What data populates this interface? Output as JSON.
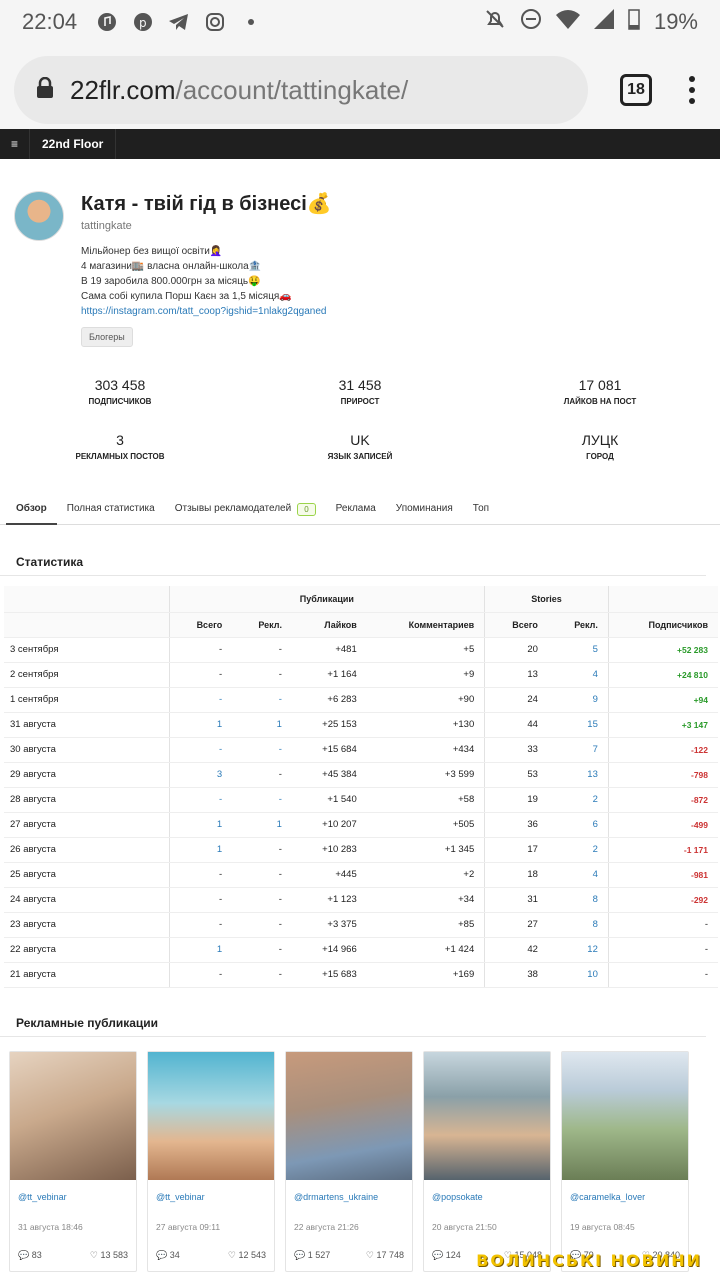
{
  "status_bar": {
    "time": "22:04",
    "battery": "19%"
  },
  "browser": {
    "url_host": "22flr.com",
    "url_path": "/account/tattingkate/",
    "tab_count": "18"
  },
  "site": {
    "menu_glyph": "≡",
    "brand": "22nd Floor"
  },
  "profile": {
    "name": "Катя - твій гід в бізнесі💰",
    "username": "tattingkate",
    "bio": [
      "Мільйонер без вищої освіти🤦‍♀️",
      "4 магазини🏬 власна онлайн-школа🏦",
      "В 19 заробила 800.000грн за місяць🤑",
      "Сама собі купила Порш Каєн за 1,5 місяця🚗"
    ],
    "link": "https://instagram.com/tatt_coop?igshid=1nlakg2qganed",
    "category": "Блогеры"
  },
  "stats": [
    {
      "value": "303 458",
      "label": "ПОДПИСЧИКОВ"
    },
    {
      "value": "31 458",
      "label": "ПРИРОСТ"
    },
    {
      "value": "17 081",
      "label": "ЛАЙКОВ НА ПОСТ"
    },
    {
      "value": "3",
      "label": "РЕКЛАМНЫХ ПОСТОВ"
    },
    {
      "value": "UK",
      "label": "ЯЗЫК ЗАПИСЕЙ"
    },
    {
      "value": "ЛУЦК",
      "label": "ГОРОД"
    }
  ],
  "tabs": [
    "Обзор",
    "Полная статистика",
    "Отзывы рекламодателей",
    "Реклама",
    "Упоминания",
    "Топ"
  ],
  "reviews_badge": "0",
  "statistics": {
    "title": "Статистика",
    "group_headers": [
      "Публикации",
      "Stories"
    ],
    "columns": [
      "Всего",
      "Рекл.",
      "Лайков",
      "Комментариев",
      "Всего",
      "Рекл.",
      "Подписчиков"
    ],
    "rows": [
      [
        "3 сентября",
        "-",
        "-",
        "+481",
        "+5",
        "20",
        "5",
        "+52 283"
      ],
      [
        "2 сентября",
        "-",
        "-",
        "+1 164",
        "+9",
        "13",
        "4",
        "+24 810"
      ],
      [
        "1 сентября",
        "-",
        "-",
        "+6 283",
        "+90",
        "24",
        "9",
        "+94"
      ],
      [
        "31 августа",
        "1",
        "1",
        "+25 153",
        "+130",
        "44",
        "15",
        "+3 147"
      ],
      [
        "30 августа",
        "-",
        "-",
        "+15 684",
        "+434",
        "33",
        "7",
        "-122"
      ],
      [
        "29 августа",
        "3",
        "-",
        "+45 384",
        "+3 599",
        "53",
        "13",
        "-798"
      ],
      [
        "28 августа",
        "-",
        "-",
        "+1 540",
        "+58",
        "19",
        "2",
        "-872"
      ],
      [
        "27 августа",
        "1",
        "1",
        "+10 207",
        "+505",
        "36",
        "6",
        "-499"
      ],
      [
        "26 августа",
        "1",
        "-",
        "+10 283",
        "+1 345",
        "17",
        "2",
        "-1 171"
      ],
      [
        "25 августа",
        "-",
        "-",
        "+445",
        "+2",
        "18",
        "4",
        "-981"
      ],
      [
        "24 августа",
        "-",
        "-",
        "+1 123",
        "+34",
        "31",
        "8",
        "-292"
      ],
      [
        "23 августа",
        "-",
        "-",
        "+3 375",
        "+85",
        "27",
        "8",
        "-"
      ],
      [
        "22 августа",
        "1",
        "-",
        "+14 966",
        "+1 424",
        "42",
        "12",
        "-"
      ],
      [
        "21 августа",
        "-",
        "-",
        "+15 683",
        "+169",
        "38",
        "10",
        "-"
      ]
    ]
  },
  "ad_posts": {
    "title": "Рекламные публикации",
    "items": [
      {
        "user": "@tt_vebinar",
        "date": "31 августа 18:46",
        "comments": "83",
        "likes": "13 583",
        "bg": "#c9a98c"
      },
      {
        "user": "@tt_vebinar",
        "date": "27 августа 09:11",
        "comments": "34",
        "likes": "12 543",
        "bg": "#7fc4d6"
      },
      {
        "user": "@drmartens_ukraine",
        "date": "22 августа 21:26",
        "comments": "1 527",
        "likes": "17 748",
        "bg": "#a98f7c"
      },
      {
        "user": "@popsokate",
        "date": "20 августа 21:50",
        "comments": "124",
        "likes": "15 048",
        "bg": "#8aa0a8"
      },
      {
        "user": "@caramelka_lover",
        "date": "19 августа 08:45",
        "comments": "79",
        "likes": "20 840",
        "bg": "#9fb88a"
      }
    ]
  },
  "watermark": "ВОЛИНСЬКІ НОВИНИ"
}
